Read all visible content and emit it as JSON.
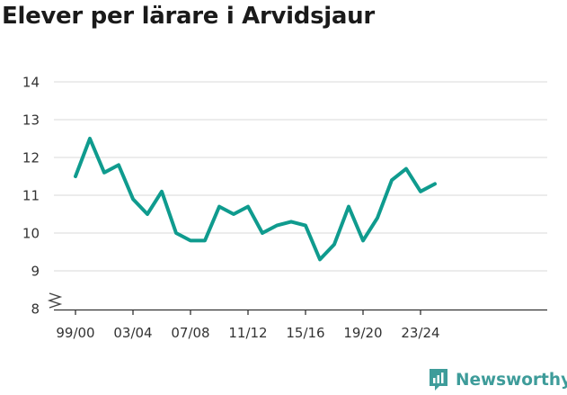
{
  "chart_data": {
    "type": "line",
    "title": "Elever per lärare i Arvidsjaur",
    "xlabel": "",
    "ylabel": "",
    "ylim": [
      8,
      14
    ],
    "y_ticks": [
      "8",
      "9",
      "10",
      "11",
      "12",
      "13",
      "14"
    ],
    "y_axis_break": true,
    "grid": true,
    "x": [
      "99/00",
      "00/01",
      "01/02",
      "02/03",
      "03/04",
      "04/05",
      "05/06",
      "06/07",
      "07/08",
      "08/09",
      "09/10",
      "10/11",
      "11/12",
      "12/13",
      "13/14",
      "14/15",
      "15/16",
      "16/17",
      "17/18",
      "18/19",
      "19/20",
      "20/21",
      "21/22",
      "22/23",
      "23/24",
      "24/25"
    ],
    "x_tick_labels": [
      "99/00",
      "03/04",
      "07/08",
      "11/12",
      "15/16",
      "19/20",
      "23/24"
    ],
    "series": [
      {
        "color": "#0f9b8e",
        "values": [
          11.5,
          12.5,
          11.6,
          11.8,
          10.9,
          10.5,
          11.1,
          10.0,
          9.8,
          9.8,
          10.7,
          10.5,
          10.7,
          10.0,
          10.2,
          10.3,
          10.2,
          9.3,
          9.7,
          10.7,
          9.8,
          10.4,
          11.4,
          11.7,
          11.1,
          11.3
        ]
      }
    ]
  },
  "branding": {
    "name": "Newsworthy",
    "icon": "newsworthy-logo-icon",
    "color": "#3e9c9a"
  }
}
